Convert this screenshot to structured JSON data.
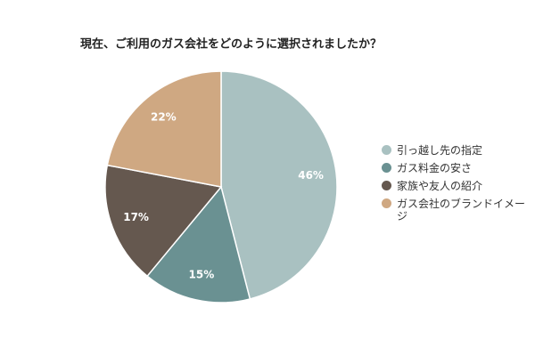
{
  "chart_data": {
    "type": "pie",
    "title": "現在、ご利用のガス会社をどのように選択されましたか？",
    "categories": [
      "引っ越し先の指定",
      "ガス料金の安さ",
      "家族や友人の紹介",
      "ガス会社のブランドイメージ"
    ],
    "values": [
      46,
      15,
      17,
      22
    ],
    "value_labels": [
      "46%",
      "15%",
      "17%",
      "22%"
    ],
    "colors": [
      "#a9c1c1",
      "#6a9192",
      "#65584f",
      "#cfa882"
    ],
    "legend": "right"
  }
}
